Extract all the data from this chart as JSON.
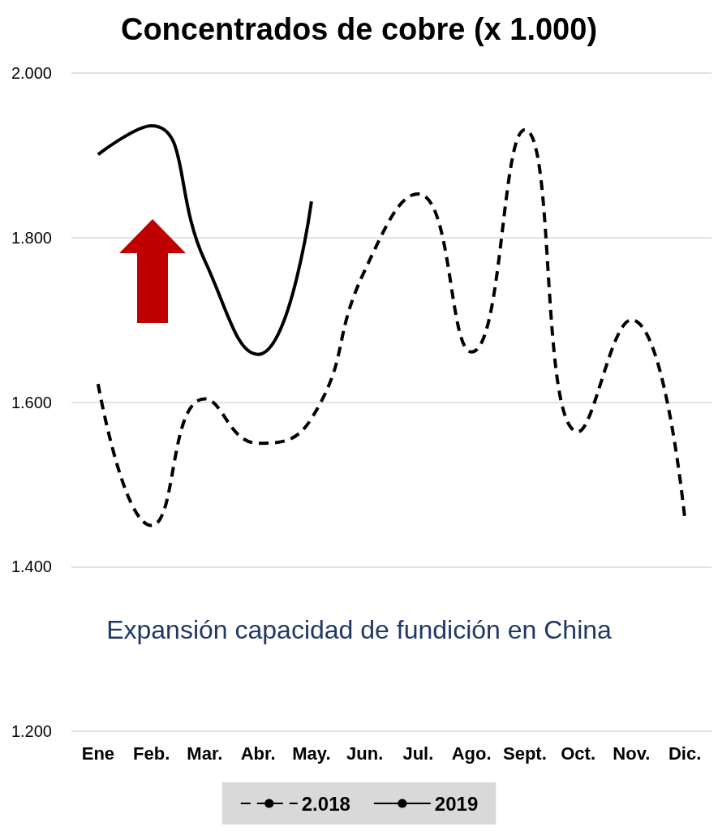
{
  "chart_data": {
    "type": "line",
    "title": "Concentrados de cobre (x 1.000)",
    "categories": [
      "Ene",
      "Feb.",
      "Mar.",
      "Abr.",
      "May.",
      "Jun.",
      "Jul.",
      "Ago.",
      "Sept.",
      "Oct.",
      "Nov.",
      "Dic."
    ],
    "series": [
      {
        "name": "2.018",
        "color": "#000000",
        "line_style": "dashed",
        "values": [
          1622,
          1450,
          1604,
          1550,
          1580,
          1760,
          1853,
          1661,
          1931,
          1564,
          1700,
          1458
        ]
      },
      {
        "name": "2019",
        "color": "#000000",
        "line_style": "solid",
        "values": [
          1901,
          1936,
          1772,
          1658,
          1844,
          null,
          null,
          null,
          null,
          null,
          null,
          null
        ]
      }
    ],
    "ylim": [
      1200,
      2000
    ],
    "yticks": [
      {
        "value": 1200,
        "label": "1.200"
      },
      {
        "value": 1400,
        "label": "1.400"
      },
      {
        "value": 1600,
        "label": "1.600"
      },
      {
        "value": 1800,
        "label": "1.800"
      },
      {
        "value": 2000,
        "label": "2.000"
      }
    ],
    "grid": "y",
    "legend": "bottom",
    "marker": "none",
    "annotations": [
      "Expansión capacidad de fundición en China"
    ]
  }
}
